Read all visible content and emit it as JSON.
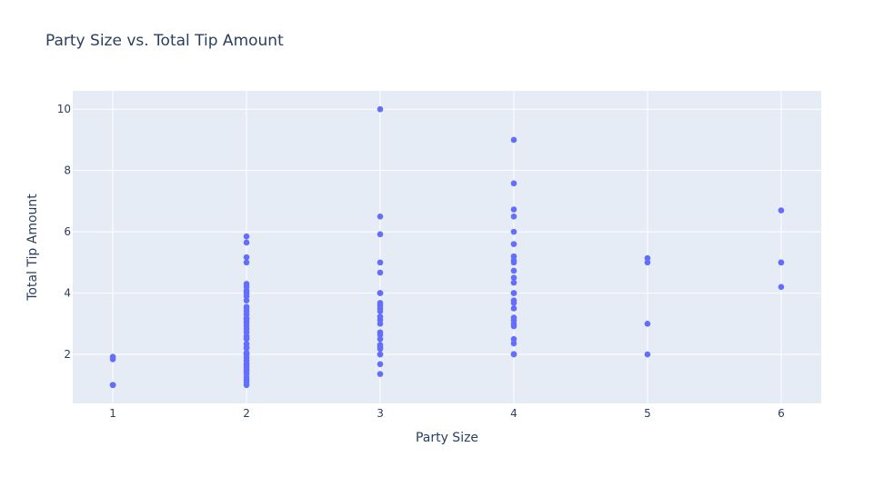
{
  "chart_data": {
    "type": "scatter",
    "title": "Party Size vs. Total Tip Amount",
    "xlabel": "Party Size",
    "ylabel": "Total Tip Amount",
    "xlim": [
      0.7,
      6.3
    ],
    "ylim": [
      0.4,
      10.6
    ],
    "x_ticks": [
      1,
      2,
      3,
      4,
      5,
      6
    ],
    "y_ticks": [
      2,
      4,
      6,
      8,
      10
    ],
    "grid": true,
    "colors": {
      "marker": "#636efa",
      "plot_bg": "#e5ecf6",
      "grid": "#ffffff",
      "text": "#2a3f5f"
    },
    "points": [
      [
        1,
        1.0
      ],
      [
        1,
        1.0
      ],
      [
        1,
        1.84
      ],
      [
        1,
        1.92
      ],
      [
        1,
        1.0
      ],
      [
        2,
        5.85
      ],
      [
        2,
        5.65
      ],
      [
        2,
        5.17
      ],
      [
        2,
        5.0
      ],
      [
        2,
        4.3
      ],
      [
        2,
        4.2
      ],
      [
        2,
        4.08
      ],
      [
        2,
        4.0
      ],
      [
        2,
        3.9
      ],
      [
        2,
        3.76
      ],
      [
        2,
        3.55
      ],
      [
        2,
        3.5
      ],
      [
        2,
        3.4
      ],
      [
        2,
        3.3
      ],
      [
        2,
        3.18
      ],
      [
        2,
        3.15
      ],
      [
        2,
        3.07
      ],
      [
        2,
        3.0
      ],
      [
        2,
        2.92
      ],
      [
        2,
        2.83
      ],
      [
        2,
        2.72
      ],
      [
        2,
        2.6
      ],
      [
        2,
        2.54
      ],
      [
        2,
        2.5
      ],
      [
        2,
        2.34
      ],
      [
        2,
        2.23
      ],
      [
        2,
        2.2
      ],
      [
        2,
        2.05
      ],
      [
        2,
        2.0
      ],
      [
        2,
        2.0
      ],
      [
        2,
        1.9
      ],
      [
        2,
        1.8
      ],
      [
        2,
        1.71
      ],
      [
        2,
        1.66
      ],
      [
        2,
        1.58
      ],
      [
        2,
        1.5
      ],
      [
        2,
        1.45
      ],
      [
        2,
        1.36
      ],
      [
        2,
        1.25
      ],
      [
        2,
        1.17
      ],
      [
        2,
        1.1
      ],
      [
        2,
        1.0
      ],
      [
        3,
        10.0
      ],
      [
        3,
        6.5
      ],
      [
        3,
        5.92
      ],
      [
        3,
        5.0
      ],
      [
        3,
        4.67
      ],
      [
        3,
        4.0
      ],
      [
        3,
        4.0
      ],
      [
        3,
        3.68
      ],
      [
        3,
        3.6
      ],
      [
        3,
        3.5
      ],
      [
        3,
        3.41
      ],
      [
        3,
        3.23
      ],
      [
        3,
        3.12
      ],
      [
        3,
        3.0
      ],
      [
        3,
        2.72
      ],
      [
        3,
        2.64
      ],
      [
        3,
        2.5
      ],
      [
        3,
        2.31
      ],
      [
        3,
        2.24
      ],
      [
        3,
        2.18
      ],
      [
        3,
        2.0
      ],
      [
        3,
        2.0
      ],
      [
        3,
        1.68
      ],
      [
        3,
        1.36
      ],
      [
        4,
        9.0
      ],
      [
        4,
        7.58
      ],
      [
        4,
        6.73
      ],
      [
        4,
        6.5
      ],
      [
        4,
        6.0
      ],
      [
        4,
        5.6
      ],
      [
        4,
        5.2
      ],
      [
        4,
        5.07
      ],
      [
        4,
        5.0
      ],
      [
        4,
        4.73
      ],
      [
        4,
        4.5
      ],
      [
        4,
        4.34
      ],
      [
        4,
        4.0
      ],
      [
        4,
        4.0
      ],
      [
        4,
        3.76
      ],
      [
        4,
        3.68
      ],
      [
        4,
        3.5
      ],
      [
        4,
        3.2
      ],
      [
        4,
        3.11
      ],
      [
        4,
        3.0
      ],
      [
        4,
        2.92
      ],
      [
        4,
        2.5
      ],
      [
        4,
        2.36
      ],
      [
        4,
        2.01
      ],
      [
        4,
        2.0
      ],
      [
        5,
        5.14
      ],
      [
        5,
        5.0
      ],
      [
        5,
        3.0
      ],
      [
        5,
        2.0
      ],
      [
        6,
        6.7
      ],
      [
        6,
        5.0
      ],
      [
        6,
        5.0
      ],
      [
        6,
        4.2
      ]
    ]
  }
}
